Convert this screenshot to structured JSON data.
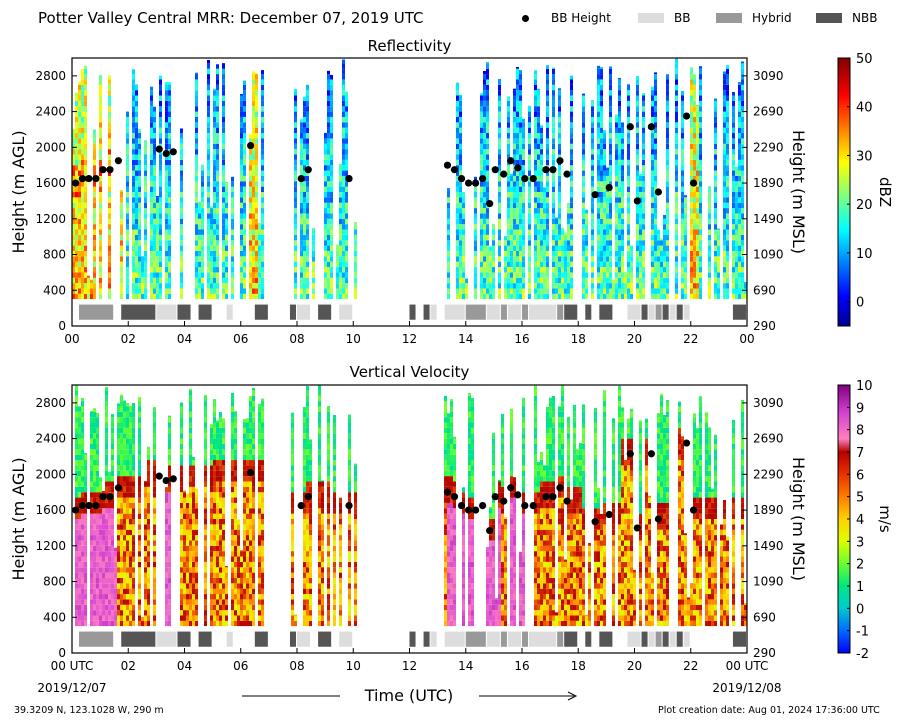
{
  "header": {
    "title": "Potter Valley Central MRR:  December 07, 2019 UTC",
    "legend": [
      {
        "label": "BB Height",
        "kind": "dot",
        "color": "#000000"
      },
      {
        "label": "BB",
        "kind": "box",
        "color": "#dddddd"
      },
      {
        "label": "Hybrid",
        "kind": "box",
        "color": "#999999"
      },
      {
        "label": "NBB",
        "kind": "box",
        "color": "#555555"
      }
    ]
  },
  "footer": {
    "location": "39.3209 N, 123.1028 W, 290 m",
    "creation": "Plot creation date: Aug 01, 2024 17:36:00 UTC"
  },
  "chart_data": [
    {
      "type": "heatmap",
      "title": "Reflectivity",
      "ylabel": "Height (m AGL)",
      "y2label": "Height (m MSL)",
      "xlim": [
        0,
        24
      ],
      "ylim": [
        0,
        3000
      ],
      "x_tick_labels": [
        "00",
        "02",
        "04",
        "06",
        "08",
        "10",
        "12",
        "14",
        "16",
        "18",
        "20",
        "22",
        "00"
      ],
      "y_ticks": [
        0,
        400,
        800,
        1200,
        1600,
        2000,
        2400,
        2800
      ],
      "y2_ticks": [
        290,
        690,
        1090,
        1490,
        1890,
        2290,
        2690,
        3090
      ],
      "colorbar": {
        "label": "dBZ",
        "min": -5,
        "max": 50,
        "ticks": [
          0,
          10,
          20,
          30,
          40,
          50
        ],
        "colormap": "jet"
      }
    },
    {
      "type": "heatmap",
      "title": "Vertical Velocity",
      "ylabel": "Height (m AGL)",
      "y2label": "Height (m MSL)",
      "xlabel": "Time (UTC)",
      "xlim": [
        0,
        24
      ],
      "ylim": [
        0,
        3000
      ],
      "x_tick_labels": [
        "00 UTC",
        "02",
        "04",
        "06",
        "08",
        "10",
        "12",
        "14",
        "16",
        "18",
        "20",
        "22",
        "00 UTC"
      ],
      "x_date_start": "2019/12/07",
      "x_date_end": "2019/12/08",
      "y_ticks": [
        0,
        400,
        800,
        1200,
        1600,
        2000,
        2400,
        2800
      ],
      "y2_ticks": [
        290,
        690,
        1090,
        1490,
        1890,
        2290,
        2690,
        3090
      ],
      "colorbar": {
        "label": "m/s",
        "min": -2,
        "max": 10,
        "ticks": [
          -2,
          -1,
          0,
          1,
          2,
          3,
          4,
          5,
          6,
          7,
          8,
          9,
          10
        ],
        "colormap": "velocity"
      }
    }
  ],
  "bb_height_points": [
    [
      0.13,
      1600
    ],
    [
      0.37,
      1650
    ],
    [
      0.6,
      1650
    ],
    [
      0.85,
      1650
    ],
    [
      1.1,
      1750
    ],
    [
      1.35,
      1750
    ],
    [
      1.65,
      1850
    ],
    [
      3.1,
      1980
    ],
    [
      3.35,
      1930
    ],
    [
      3.6,
      1950
    ],
    [
      6.35,
      2020
    ],
    [
      8.15,
      1650
    ],
    [
      8.4,
      1750
    ],
    [
      9.85,
      1650
    ],
    [
      13.35,
      1800
    ],
    [
      13.6,
      1750
    ],
    [
      13.85,
      1650
    ],
    [
      14.1,
      1600
    ],
    [
      14.35,
      1600
    ],
    [
      14.6,
      1650
    ],
    [
      14.85,
      1370
    ],
    [
      15.05,
      1750
    ],
    [
      15.35,
      1700
    ],
    [
      15.6,
      1850
    ],
    [
      15.85,
      1770
    ],
    [
      16.1,
      1650
    ],
    [
      16.4,
      1650
    ],
    [
      16.85,
      1750
    ],
    [
      17.1,
      1750
    ],
    [
      17.35,
      1850
    ],
    [
      17.6,
      1700
    ],
    [
      18.6,
      1470
    ],
    [
      19.1,
      1550
    ],
    [
      19.85,
      2230
    ],
    [
      20.1,
      1400
    ],
    [
      20.6,
      2230
    ],
    [
      20.85,
      1500
    ],
    [
      21.85,
      2350
    ],
    [
      22.1,
      1600
    ]
  ],
  "precip_type_bar": [
    {
      "start": 0.25,
      "end": 1.5,
      "type": "Hybrid"
    },
    {
      "start": 1.75,
      "end": 3.0,
      "type": "NBB"
    },
    {
      "start": 3.0,
      "end": 3.75,
      "type": "BB"
    },
    {
      "start": 3.75,
      "end": 4.25,
      "type": "NBB"
    },
    {
      "start": 4.5,
      "end": 5.0,
      "type": "NBB"
    },
    {
      "start": 5.5,
      "end": 5.75,
      "type": "BB"
    },
    {
      "start": 6.5,
      "end": 7.0,
      "type": "NBB"
    },
    {
      "start": 7.75,
      "end": 8.0,
      "type": "NBB"
    },
    {
      "start": 8.0,
      "end": 8.5,
      "type": "BB"
    },
    {
      "start": 8.75,
      "end": 9.25,
      "type": "NBB"
    },
    {
      "start": 9.5,
      "end": 10.0,
      "type": "BB"
    },
    {
      "start": 12.0,
      "end": 12.25,
      "type": "NBB"
    },
    {
      "start": 12.5,
      "end": 12.75,
      "type": "NBB"
    },
    {
      "start": 12.75,
      "end": 13.0,
      "type": "BB"
    },
    {
      "start": 13.25,
      "end": 14.0,
      "type": "BB"
    },
    {
      "start": 14.0,
      "end": 14.75,
      "type": "Hybrid"
    },
    {
      "start": 14.75,
      "end": 15.25,
      "type": "BB"
    },
    {
      "start": 15.25,
      "end": 15.5,
      "type": "Hybrid"
    },
    {
      "start": 15.5,
      "end": 16.0,
      "type": "BB"
    },
    {
      "start": 16.0,
      "end": 16.25,
      "type": "Hybrid"
    },
    {
      "start": 16.25,
      "end": 17.25,
      "type": "BB"
    },
    {
      "start": 17.25,
      "end": 17.5,
      "type": "Hybrid"
    },
    {
      "start": 17.5,
      "end": 18.0,
      "type": "NBB"
    },
    {
      "start": 18.25,
      "end": 18.5,
      "type": "NBB"
    },
    {
      "start": 18.75,
      "end": 19.25,
      "type": "NBB"
    },
    {
      "start": 19.75,
      "end": 20.25,
      "type": "BB"
    },
    {
      "start": 20.25,
      "end": 20.5,
      "type": "NBB"
    },
    {
      "start": 20.5,
      "end": 20.75,
      "type": "BB"
    },
    {
      "start": 20.75,
      "end": 21.0,
      "type": "Hybrid"
    },
    {
      "start": 21.0,
      "end": 21.25,
      "type": "NBB"
    },
    {
      "start": 21.25,
      "end": 21.5,
      "type": "BB"
    },
    {
      "start": 21.5,
      "end": 21.75,
      "type": "NBB"
    },
    {
      "start": 21.75,
      "end": 22.0,
      "type": "BB"
    },
    {
      "start": 23.5,
      "end": 24.0,
      "type": "NBB"
    }
  ],
  "precip_type_colors": {
    "BB": "#dddddd",
    "Hybrid": "#999999",
    "NBB": "#555555"
  },
  "echo_periods": [
    [
      0.0,
      6.9
    ],
    [
      7.7,
      8.55
    ],
    [
      8.65,
      10.05
    ],
    [
      13.2,
      21.2
    ],
    [
      21.35,
      22.3
    ],
    [
      22.35,
      24.0
    ]
  ]
}
